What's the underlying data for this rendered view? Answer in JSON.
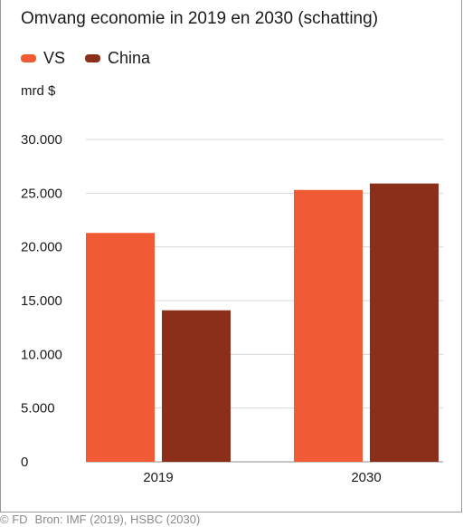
{
  "chart_data": {
    "type": "bar",
    "title": "Omvang economie in 2019 en 2030 (schatting)",
    "unit_label": "mrd $",
    "categories": [
      "2019",
      "2030"
    ],
    "series": [
      {
        "name": "VS",
        "color": "#f05a35",
        "values": [
          21300,
          25300
        ]
      },
      {
        "name": "China",
        "color": "#8b2f1a",
        "values": [
          14100,
          25900
        ]
      }
    ],
    "ylim": [
      0,
      30000
    ],
    "yticks": [
      {
        "value": 0,
        "label": "0"
      },
      {
        "value": 5000,
        "label": "5.000"
      },
      {
        "value": 10000,
        "label": "10.000"
      },
      {
        "value": 15000,
        "label": "15.000"
      },
      {
        "value": 20000,
        "label": "20.000"
      },
      {
        "value": 25000,
        "label": "25.000"
      },
      {
        "value": 30000,
        "label": "30.000"
      }
    ],
    "grid": true,
    "legend_position": "top-left"
  },
  "footer": {
    "copyright": "© FD",
    "source": "Bron: IMF (2019), HSBC (2030)"
  }
}
